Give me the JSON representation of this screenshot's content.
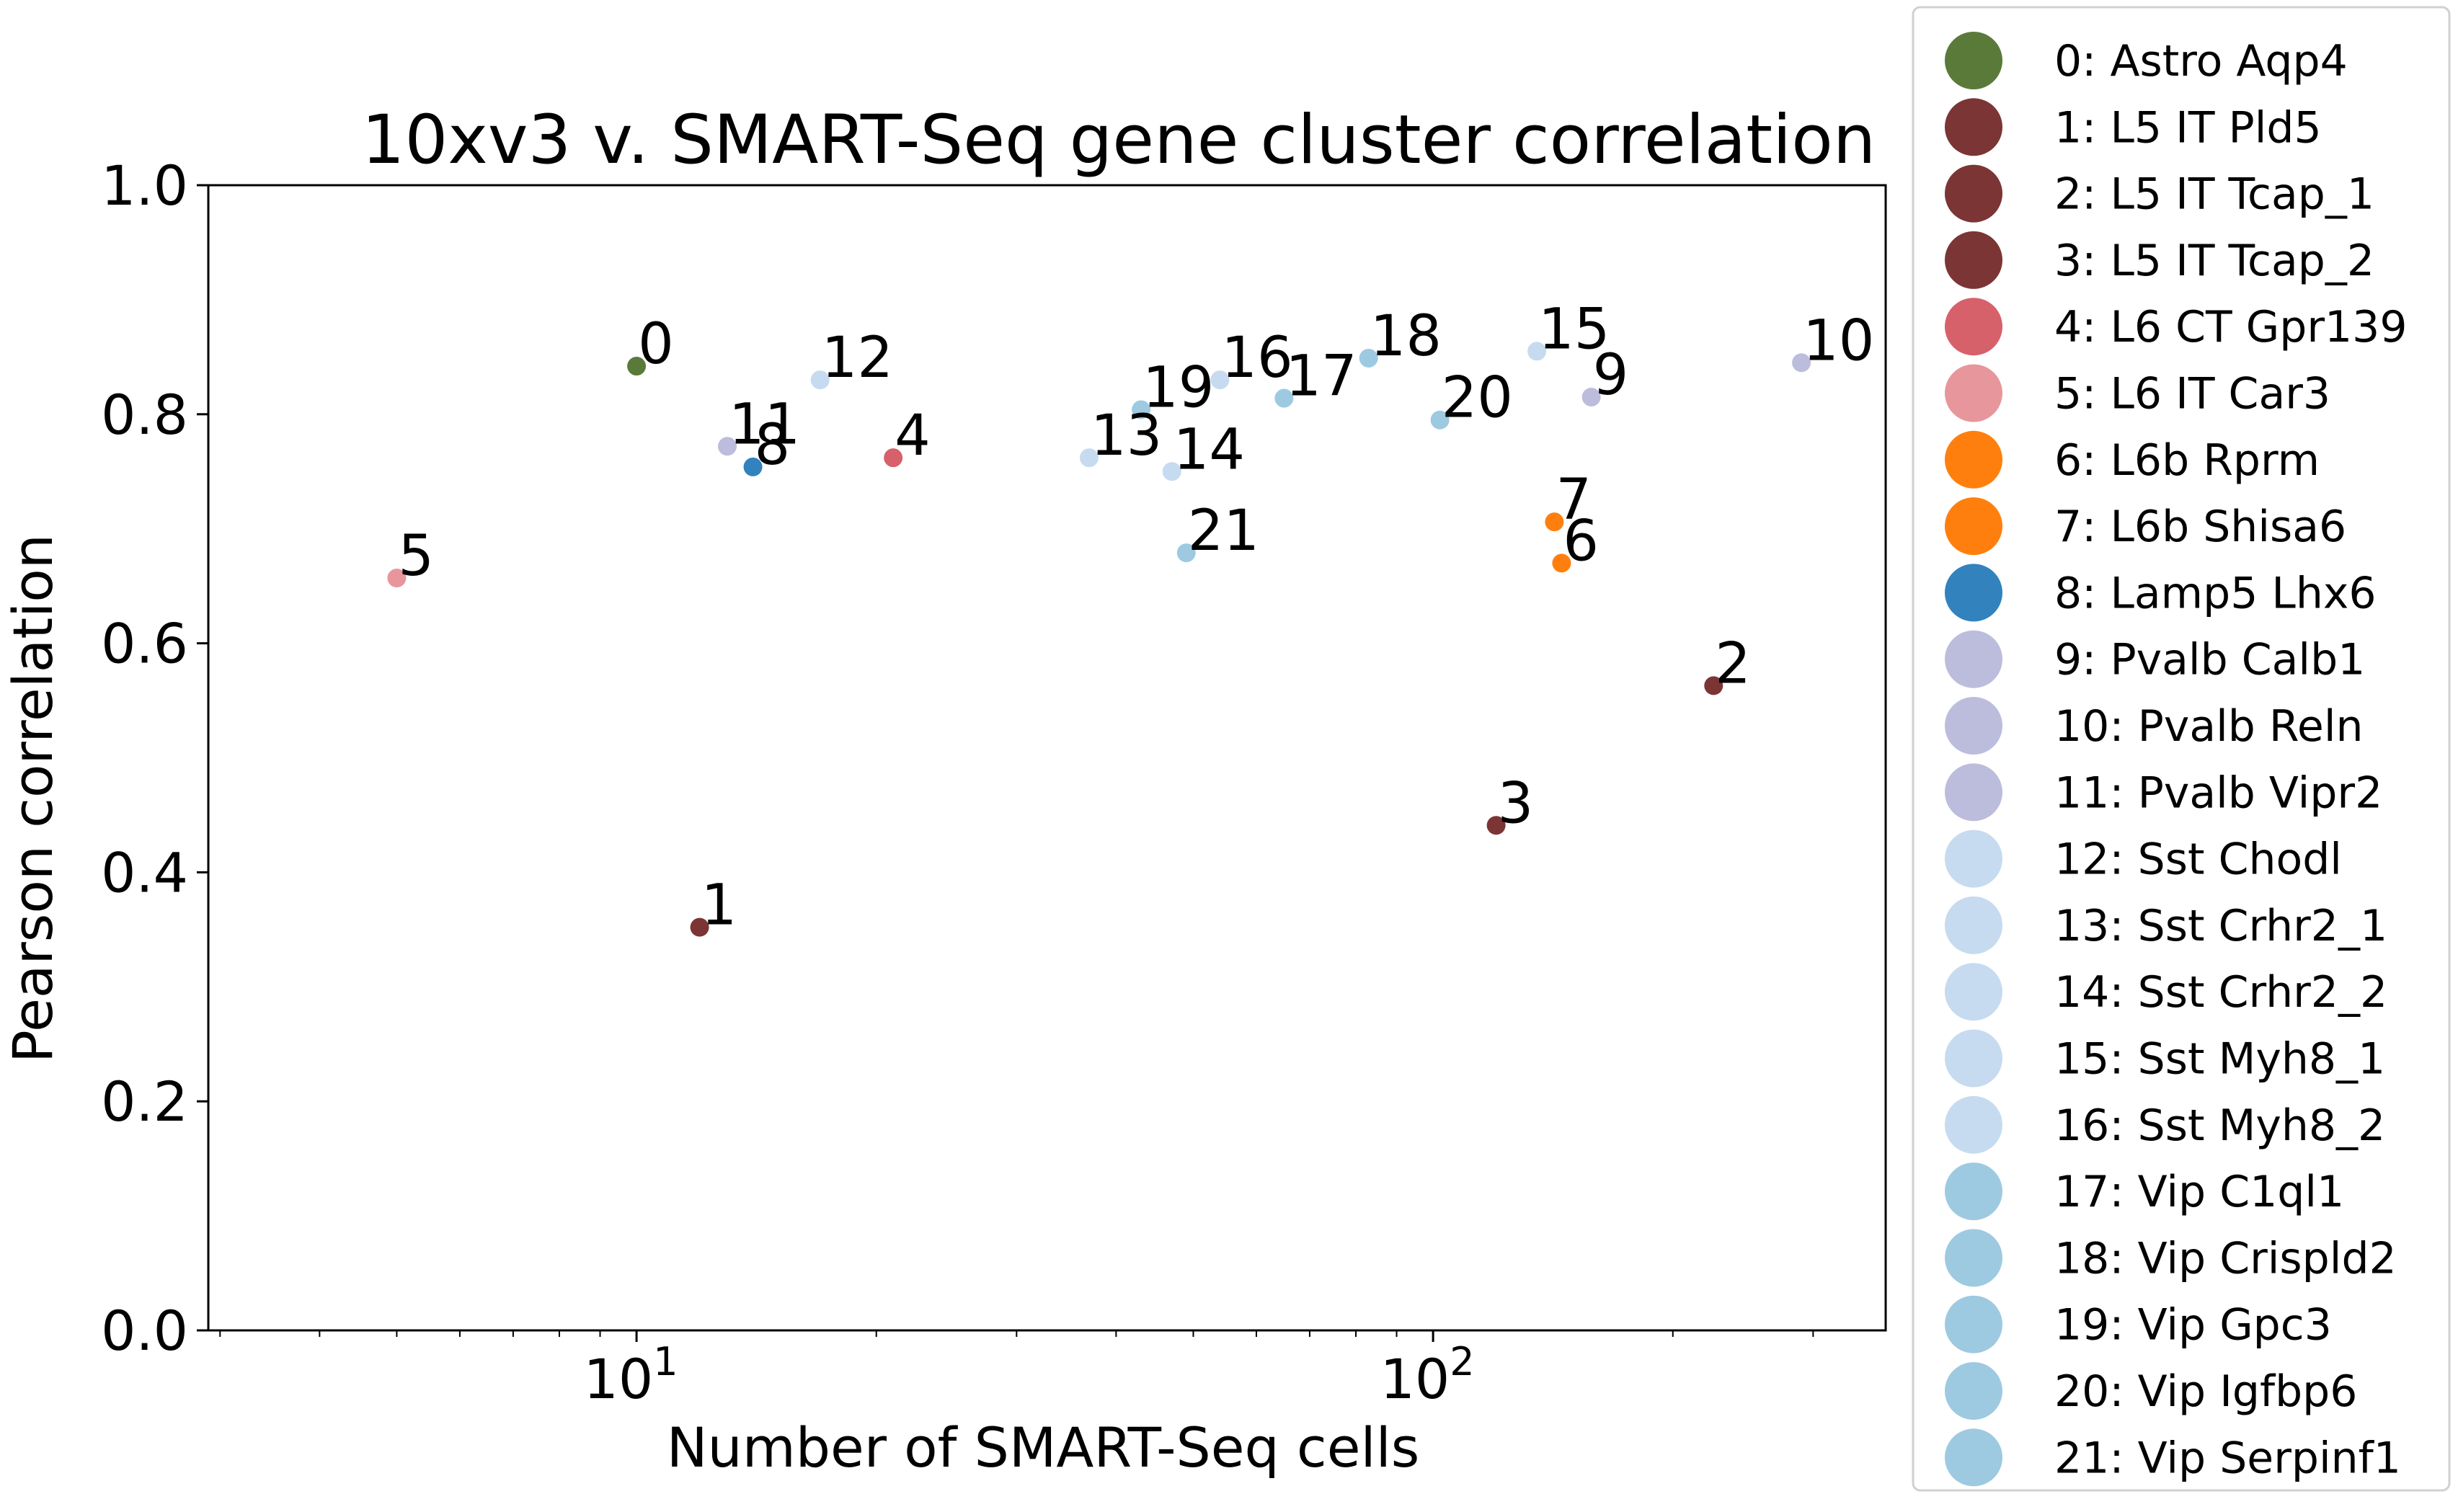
{
  "chart_data": {
    "type": "scatter",
    "title": "10xv3 v. SMART-Seq gene cluster correlation",
    "xlabel": "Number of SMART-Seq cells",
    "ylabel": "Pearson correlation",
    "xscale": "log",
    "xlim": [
      2.9,
      370
    ],
    "ylim": [
      0.0,
      1.0
    ],
    "x_ticks": [
      {
        "value": 10,
        "base": "10",
        "exp": "1"
      },
      {
        "value": 100,
        "base": "10",
        "exp": "2"
      }
    ],
    "y_ticks": [
      {
        "value": 0.0,
        "label": "0.0"
      },
      {
        "value": 0.2,
        "label": "0.2"
      },
      {
        "value": 0.4,
        "label": "0.4"
      },
      {
        "value": 0.6,
        "label": "0.6"
      },
      {
        "value": 0.8,
        "label": "0.8"
      },
      {
        "value": 1.0,
        "label": "1.0"
      }
    ],
    "grid": false,
    "legend_position": "outside right",
    "points": [
      {
        "id": "0",
        "name": "0: Astro Aqp4",
        "x": 10,
        "y": 0.842,
        "color": "#5a7a3a"
      },
      {
        "id": "1",
        "name": "1: L5 IT Pld5",
        "x": 12,
        "y": 0.352,
        "color": "#7b3535"
      },
      {
        "id": "2",
        "name": "2: L5 IT Tcap_1",
        "x": 225,
        "y": 0.563,
        "color": "#7b3535"
      },
      {
        "id": "3",
        "name": "3: L5 IT Tcap_2",
        "x": 120,
        "y": 0.441,
        "color": "#7b3535"
      },
      {
        "id": "4",
        "name": "4: L6 CT Gpr139",
        "x": 21,
        "y": 0.762,
        "color": "#d6616b"
      },
      {
        "id": "5",
        "name": "5: L6 IT Car3",
        "x": 5,
        "y": 0.657,
        "color": "#e7969c"
      },
      {
        "id": "6",
        "name": "6: L6b Rprm",
        "x": 145,
        "y": 0.67,
        "color": "#ff7f0e"
      },
      {
        "id": "7",
        "name": "7: L6b Shisa6",
        "x": 142,
        "y": 0.706,
        "color": "#ff7f0e"
      },
      {
        "id": "8",
        "name": "8: Lamp5 Lhx6",
        "x": 14,
        "y": 0.754,
        "color": "#3182bd"
      },
      {
        "id": "9",
        "name": "9: Pvalb Calb1",
        "x": 158,
        "y": 0.815,
        "color": "#bcbddc"
      },
      {
        "id": "10",
        "name": "10: Pvalb Reln",
        "x": 290,
        "y": 0.845,
        "color": "#bcbddc"
      },
      {
        "id": "11",
        "name": "11: Pvalb Vipr2",
        "x": 13,
        "y": 0.772,
        "color": "#bcbddc"
      },
      {
        "id": "12",
        "name": "12: Sst Chodl",
        "x": 17,
        "y": 0.83,
        "color": "#c6dbef"
      },
      {
        "id": "13",
        "name": "13: Sst Crhr2_1",
        "x": 37,
        "y": 0.762,
        "color": "#c6dbef"
      },
      {
        "id": "14",
        "name": "14: Sst Crhr2_2",
        "x": 47,
        "y": 0.75,
        "color": "#c6dbef"
      },
      {
        "id": "15",
        "name": "15: Sst Myh8_1",
        "x": 135,
        "y": 0.855,
        "color": "#c6dbef"
      },
      {
        "id": "16",
        "name": "16: Sst Myh8_2",
        "x": 54,
        "y": 0.83,
        "color": "#c6dbef"
      },
      {
        "id": "17",
        "name": "17: Vip C1ql1",
        "x": 65,
        "y": 0.814,
        "color": "#9ecae1"
      },
      {
        "id": "18",
        "name": "18: Vip Crispld2",
        "x": 83,
        "y": 0.849,
        "color": "#9ecae1"
      },
      {
        "id": "19",
        "name": "19: Vip Gpc3",
        "x": 43,
        "y": 0.804,
        "color": "#9ecae1"
      },
      {
        "id": "20",
        "name": "20: Vip Igfbp6",
        "x": 102,
        "y": 0.795,
        "color": "#9ecae1"
      },
      {
        "id": "21",
        "name": "21: Vip Serpinf1",
        "x": 49,
        "y": 0.679,
        "color": "#9ecae1"
      }
    ]
  }
}
